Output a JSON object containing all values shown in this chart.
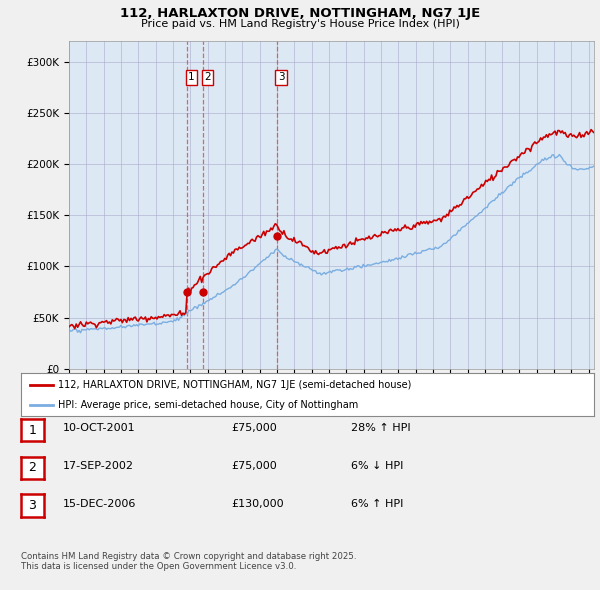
{
  "title_line1": "112, HARLAXTON DRIVE, NOTTINGHAM, NG7 1JE",
  "title_line2": "Price paid vs. HM Land Registry's House Price Index (HPI)",
  "background_color": "#f0f0f0",
  "plot_bg_color": "#dce9f5",
  "red_line_color": "#cc0000",
  "blue_line_color": "#7aade0",
  "dashed_line_color": "#dd4444",
  "ylim": [
    0,
    320000
  ],
  "yticks": [
    0,
    50000,
    100000,
    150000,
    200000,
    250000,
    300000
  ],
  "ytick_labels": [
    "£0",
    "£50K",
    "£100K",
    "£150K",
    "£200K",
    "£250K",
    "£300K"
  ],
  "sale_labels": [
    "1",
    "2",
    "3"
  ],
  "legend_line1": "112, HARLAXTON DRIVE, NOTTINGHAM, NG7 1JE (semi-detached house)",
  "legend_line2": "HPI: Average price, semi-detached house, City of Nottingham",
  "table_data": [
    {
      "num": "1",
      "date": "10-OCT-2001",
      "price": "£75,000",
      "change": "28% ↑ HPI"
    },
    {
      "num": "2",
      "date": "17-SEP-2002",
      "price": "£75,000",
      "change": "6% ↓ HPI"
    },
    {
      "num": "3",
      "date": "15-DEC-2006",
      "price": "£130,000",
      "change": "6% ↑ HPI"
    }
  ],
  "footer": "Contains HM Land Registry data © Crown copyright and database right 2025.\nThis data is licensed under the Open Government Licence v3.0."
}
